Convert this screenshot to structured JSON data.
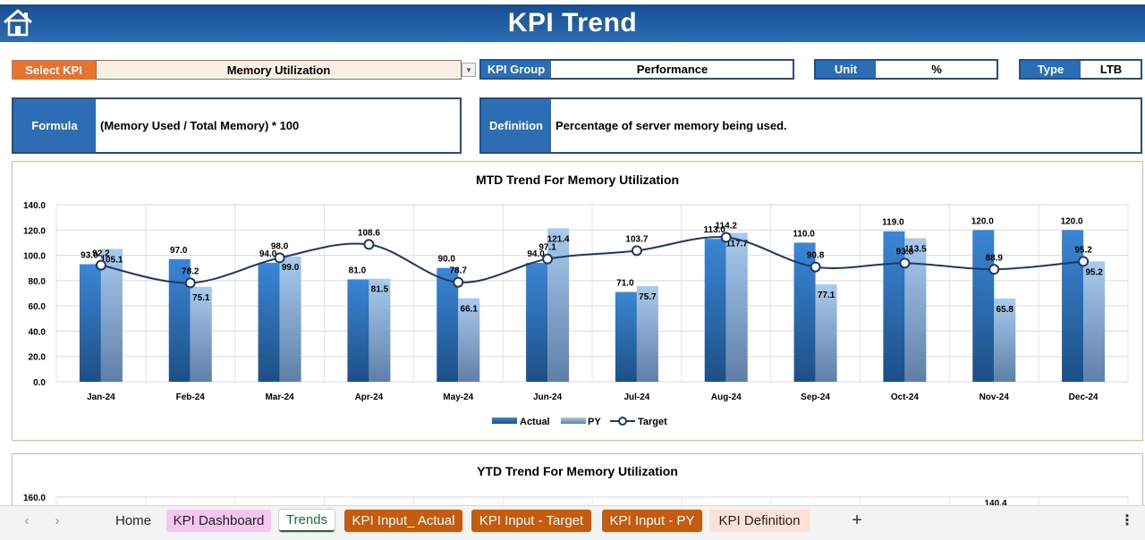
{
  "header": {
    "title": "KPI Trend"
  },
  "selector": {
    "select_label": "Select KPI",
    "select_value": "Memory Utilization",
    "group_label": "KPI Group",
    "group_value": "Performance",
    "unit_label": "Unit",
    "unit_value": "%",
    "type_label": "Type",
    "type_value": "LTB"
  },
  "info": {
    "formula_label": "Formula",
    "formula_value": "(Memory Used / Total Memory) * 100",
    "definition_label": "Definition",
    "definition_value": "Percentage of server memory being used."
  },
  "chart_data": [
    {
      "type": "bar",
      "title": "MTD Trend For Memory Utilization",
      "categories": [
        "Jan-24",
        "Feb-24",
        "Mar-24",
        "Apr-24",
        "May-24",
        "Jun-24",
        "Jul-24",
        "Aug-24",
        "Sep-24",
        "Oct-24",
        "Nov-24",
        "Dec-24"
      ],
      "series": [
        {
          "name": "Actual",
          "kind": "bar",
          "values": [
            93.0,
            97.0,
            94.0,
            81.0,
            90.0,
            94.0,
            71.0,
            113.0,
            110.0,
            119.0,
            120.0,
            120.0
          ],
          "labels": [
            "93.0",
            "97.0",
            "94.0",
            "81.0",
            "90.0",
            "94.0",
            "71.0",
            "113.0",
            "110.0",
            "119.0",
            "120.0",
            "120.0"
          ]
        },
        {
          "name": "PY",
          "kind": "bar",
          "values": [
            105.1,
            75.1,
            99.0,
            81.5,
            66.1,
            121.4,
            75.7,
            117.7,
            77.1,
            113.5,
            65.8,
            95.2
          ],
          "labels": [
            "105.1",
            "75.1",
            "99.0",
            "81.5",
            "66.1",
            "121.4",
            "75.7",
            "117.7",
            "77.1",
            "113.5",
            "65.8",
            "95.2"
          ]
        },
        {
          "name": "Target",
          "kind": "line",
          "values": [
            92.2,
            78.2,
            98.0,
            108.6,
            78.7,
            97.1,
            103.7,
            114.2,
            90.8,
            93.8,
            88.9,
            95.2
          ],
          "labels": [
            "92.2",
            "78.2",
            "98.0",
            "108.6",
            "78.7",
            "97.1",
            "103.7",
            "114.2",
            "90.8",
            "93.8",
            "88.9",
            "95.2"
          ]
        }
      ],
      "yticks": [
        "0.0",
        "20.0",
        "40.0",
        "60.0",
        "80.0",
        "100.0",
        "120.0",
        "140.0"
      ],
      "ylim": [
        0,
        140
      ],
      "grid": true,
      "legend": "bottom",
      "colors": {
        "actual": "#2e75b6",
        "py": "#9dc3e6",
        "target": "#1f3864"
      }
    },
    {
      "type": "bar",
      "title": "YTD Trend For Memory Utilization",
      "yticks": [
        "160.0"
      ],
      "visible_labels": [
        "140.4"
      ]
    }
  ],
  "sheet_tabs": [
    {
      "label": "Home",
      "bg": "#f3f3f3",
      "fg": "#222222"
    },
    {
      "label": "KPI Dashboard",
      "bg": "#f4c6f0",
      "fg": "#222222"
    },
    {
      "label": "Trends",
      "bg": "#ffffff",
      "fg": "#1e6b38",
      "active": true
    },
    {
      "label": "KPI Input_ Actual",
      "bg": "#c55a11",
      "fg": "#ffffff"
    },
    {
      "label": "KPI Input - Target",
      "bg": "#c55a11",
      "fg": "#ffffff"
    },
    {
      "label": "KPI Input - PY",
      "bg": "#c55a11",
      "fg": "#ffffff"
    },
    {
      "label": "KPI Definition",
      "bg": "#fbe2d5",
      "fg": "#222222"
    }
  ],
  "tabbar_icons": {
    "add": "+",
    "more": "⋮"
  }
}
